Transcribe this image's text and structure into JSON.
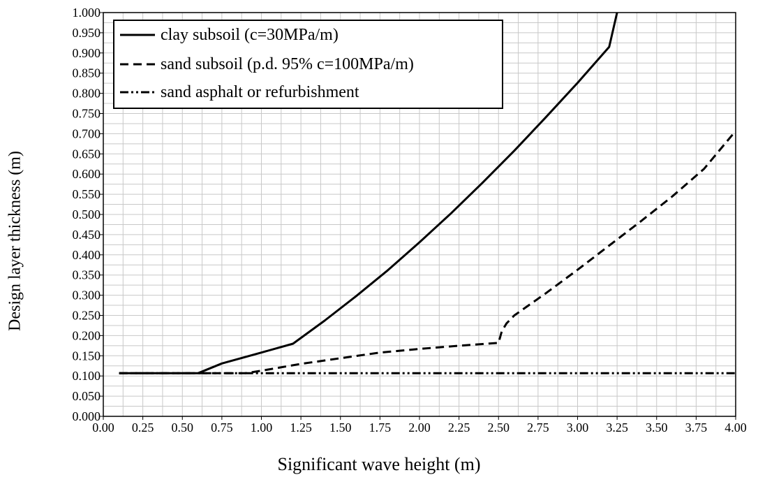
{
  "chart_data": {
    "type": "line",
    "title": "",
    "xlabel": "Significant wave height (m)",
    "ylabel": "Design layer thickness (m)",
    "xlim": [
      0.0,
      4.0
    ],
    "ylim": [
      0.0,
      1.0
    ],
    "x_ticks": [
      "0.00",
      "0.25",
      "0.50",
      "0.75",
      "1.00",
      "1.25",
      "1.50",
      "1.75",
      "2.00",
      "2.25",
      "2.50",
      "2.75",
      "3.00",
      "3.25",
      "3.50",
      "3.75",
      "4.00"
    ],
    "y_ticks": [
      "0.000",
      "0.050",
      "0.100",
      "0.150",
      "0.200",
      "0.250",
      "0.300",
      "0.350",
      "0.400",
      "0.450",
      "0.500",
      "0.550",
      "0.600",
      "0.650",
      "0.700",
      "0.750",
      "0.800",
      "0.850",
      "0.900",
      "0.950",
      "1.000"
    ],
    "grid": true,
    "legend_position": "top-left",
    "series": [
      {
        "name": "clay subsoil (c=30MPa/m)",
        "style": "solid",
        "x": [
          0.1,
          0.6,
          0.75,
          1.0,
          1.2,
          1.4,
          1.6,
          1.8,
          2.0,
          2.2,
          2.4,
          2.6,
          2.8,
          3.0,
          3.2,
          3.25
        ],
        "y": [
          0.107,
          0.107,
          0.131,
          0.158,
          0.18,
          0.237,
          0.298,
          0.362,
          0.431,
          0.503,
          0.579,
          0.658,
          0.741,
          0.826,
          0.915,
          1.0
        ]
      },
      {
        "name": "sand subsoil (p.d. 95% c=100MPa/m)",
        "style": "dashed",
        "x": [
          0.1,
          0.9,
          1.0,
          1.25,
          1.5,
          1.75,
          2.0,
          2.25,
          2.5,
          2.52,
          2.55,
          2.6,
          2.8,
          3.0,
          3.2,
          3.4,
          3.6,
          3.8,
          4.0
        ],
        "y": [
          0.107,
          0.107,
          0.113,
          0.13,
          0.144,
          0.158,
          0.167,
          0.175,
          0.182,
          0.21,
          0.23,
          0.25,
          0.305,
          0.363,
          0.423,
          0.483,
          0.545,
          0.613,
          0.707
        ]
      },
      {
        "name": "sand asphalt or refurbishment",
        "style": "dash-dot",
        "x": [
          0.1,
          4.0
        ],
        "y": [
          0.107,
          0.107
        ]
      }
    ]
  }
}
